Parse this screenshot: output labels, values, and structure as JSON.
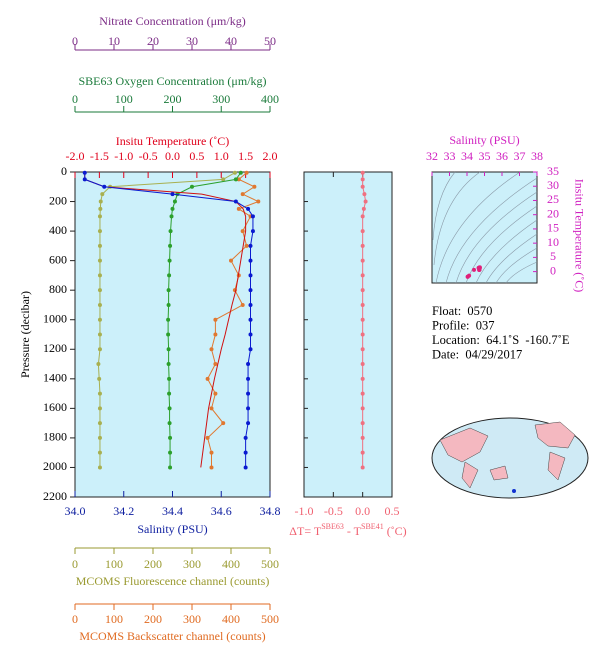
{
  "chart_data": [
    {
      "type": "profile",
      "y_label": "Pressure (decibar)",
      "ylim": [
        0,
        2200
      ],
      "yticks": [
        0,
        200,
        400,
        600,
        800,
        1000,
        1200,
        1400,
        1600,
        1800,
        2000,
        2200
      ],
      "pressure": [
        5,
        50,
        100,
        150,
        200,
        250,
        300,
        400,
        500,
        600,
        700,
        800,
        900,
        1000,
        1100,
        1200,
        1300,
        1400,
        1500,
        1600,
        1700,
        1800,
        1900,
        2000
      ],
      "x_axes": [
        {
          "title": "Nitrate Concentration (μm/kg)",
          "color": "#7b2b86",
          "side": "top",
          "xlim": [
            0,
            50
          ],
          "xticks": [
            0,
            10,
            20,
            30,
            40,
            50
          ]
        },
        {
          "title": "SBE63 Oxygen Concentration (μm/kg)",
          "color": "#1a7a3a",
          "side": "top",
          "xlim": [
            0,
            400
          ],
          "xticks": [
            0,
            100,
            200,
            300,
            400
          ]
        },
        {
          "title": "Insitu Temperature (˚C)",
          "color": "#e0001b",
          "side": "top",
          "xlim": [
            -2,
            2
          ],
          "xticks": [
            {
              "value": -2,
              "label": "-2.0"
            },
            -1.5,
            {
              "value": -1,
              "label": "-1.0"
            },
            -0.5,
            {
              "value": 0,
              "label": "0.0"
            },
            0.5,
            {
              "value": 1,
              "label": "1.0"
            },
            1.5,
            {
              "value": 2,
              "label": "2.0"
            }
          ]
        },
        {
          "title": "Salinity (PSU)",
          "color": "#1020a0",
          "side": "bottom",
          "xlim": [
            34,
            34.8
          ],
          "xticks": [
            {
              "value": 34,
              "label": "34.0"
            },
            34.2,
            34.4,
            34.6,
            34.8
          ]
        },
        {
          "title": "MCOMS Fluorescence channel (counts)",
          "color": "#9a9a30",
          "side": "bottom",
          "xlim": [
            0,
            500
          ],
          "xticks": [
            0,
            100,
            200,
            300,
            400,
            500
          ]
        },
        {
          "title": "MCOMS Backscatter channel (counts)",
          "color": "#e06a20",
          "side": "bottom",
          "xlim": [
            0,
            500
          ],
          "xticks": [
            0,
            100,
            200,
            300,
            400,
            500
          ]
        }
      ],
      "series": [
        {
          "axis": 4,
          "color": "#a8b050",
          "markers": true,
          "values": [
            410,
            380,
            90,
            70,
            66,
            65,
            64,
            64,
            64,
            64,
            64,
            64,
            64,
            64,
            64,
            64,
            60,
            62,
            64,
            64,
            64,
            64,
            64,
            64
          ]
        },
        {
          "axis": 5,
          "color": "#e07830",
          "markers": true,
          "values": [
            440,
            420,
            460,
            430,
            470,
            420,
            450,
            430,
            440,
            400,
            420,
            410,
            430,
            360,
            360,
            350,
            360,
            340,
            360,
            350,
            380,
            340,
            350,
            350
          ]
        },
        {
          "axis": 1,
          "color": "#2ca02c",
          "markers": true,
          "values": [
            340,
            330,
            240,
            210,
            205,
            200,
            198,
            196,
            195,
            194,
            193,
            192,
            192,
            191,
            191,
            192,
            192,
            193,
            193,
            194,
            194,
            195,
            195,
            195
          ]
        },
        {
          "axis": 2,
          "color": "#d01010",
          "markers": false,
          "values": [
            -1.8,
            -1.8,
            -1.4,
            0.6,
            1.3,
            1.45,
            1.5,
            1.5,
            1.45,
            1.4,
            1.35,
            1.3,
            1.22,
            1.15,
            1.08,
            1.0,
            0.93,
            0.86,
            0.8,
            0.74,
            0.7,
            0.66,
            0.62,
            0.58
          ]
        },
        {
          "axis": 3,
          "color": "#0a1ad0",
          "markers": true,
          "values": [
            34.04,
            34.04,
            34.12,
            34.4,
            34.66,
            34.71,
            34.73,
            34.73,
            34.72,
            34.72,
            34.72,
            34.72,
            34.72,
            34.72,
            34.72,
            34.72,
            34.71,
            34.71,
            34.71,
            34.71,
            34.71,
            34.7,
            34.7,
            34.7
          ]
        }
      ]
    },
    {
      "type": "profile-diff",
      "x_axis": {
        "title": [
          "ΔT= T",
          "SBE63",
          " - T",
          "SBE41",
          " (˚C)"
        ],
        "color": "#f06070",
        "xlim": [
          -1,
          0.5
        ],
        "xticks": [
          {
            "value": -1,
            "label": "-1.0"
          },
          -0.5,
          {
            "value": 0,
            "label": "0.0"
          },
          0.5
        ]
      },
      "series": [
        {
          "color": "#f07080",
          "values": [
            0,
            0,
            0,
            0.03,
            0.05,
            0.02,
            0,
            0,
            0,
            0,
            0,
            0,
            0,
            0,
            0,
            0,
            0,
            0,
            0,
            0,
            0,
            0,
            0,
            0
          ]
        }
      ]
    },
    {
      "type": "ts",
      "x_axis": {
        "title": "Salinity (PSU)",
        "xlim": [
          32,
          38
        ],
        "xticks": [
          32,
          33,
          34,
          35,
          36,
          37,
          38
        ]
      },
      "y_axis": {
        "title": "Insitu Temperature (˚C)",
        "ylim": [
          -4,
          35
        ],
        "yticks": [
          0,
          5,
          10,
          15,
          20,
          25,
          30,
          35
        ]
      },
      "axis_color": "#d020c0",
      "color": "#e0207a"
    }
  ],
  "info": [
    "Float:  0570",
    "Profile:  037",
    "Location:  64.1˚S  -160.7˚E",
    "Date:  04/29/2017"
  ]
}
